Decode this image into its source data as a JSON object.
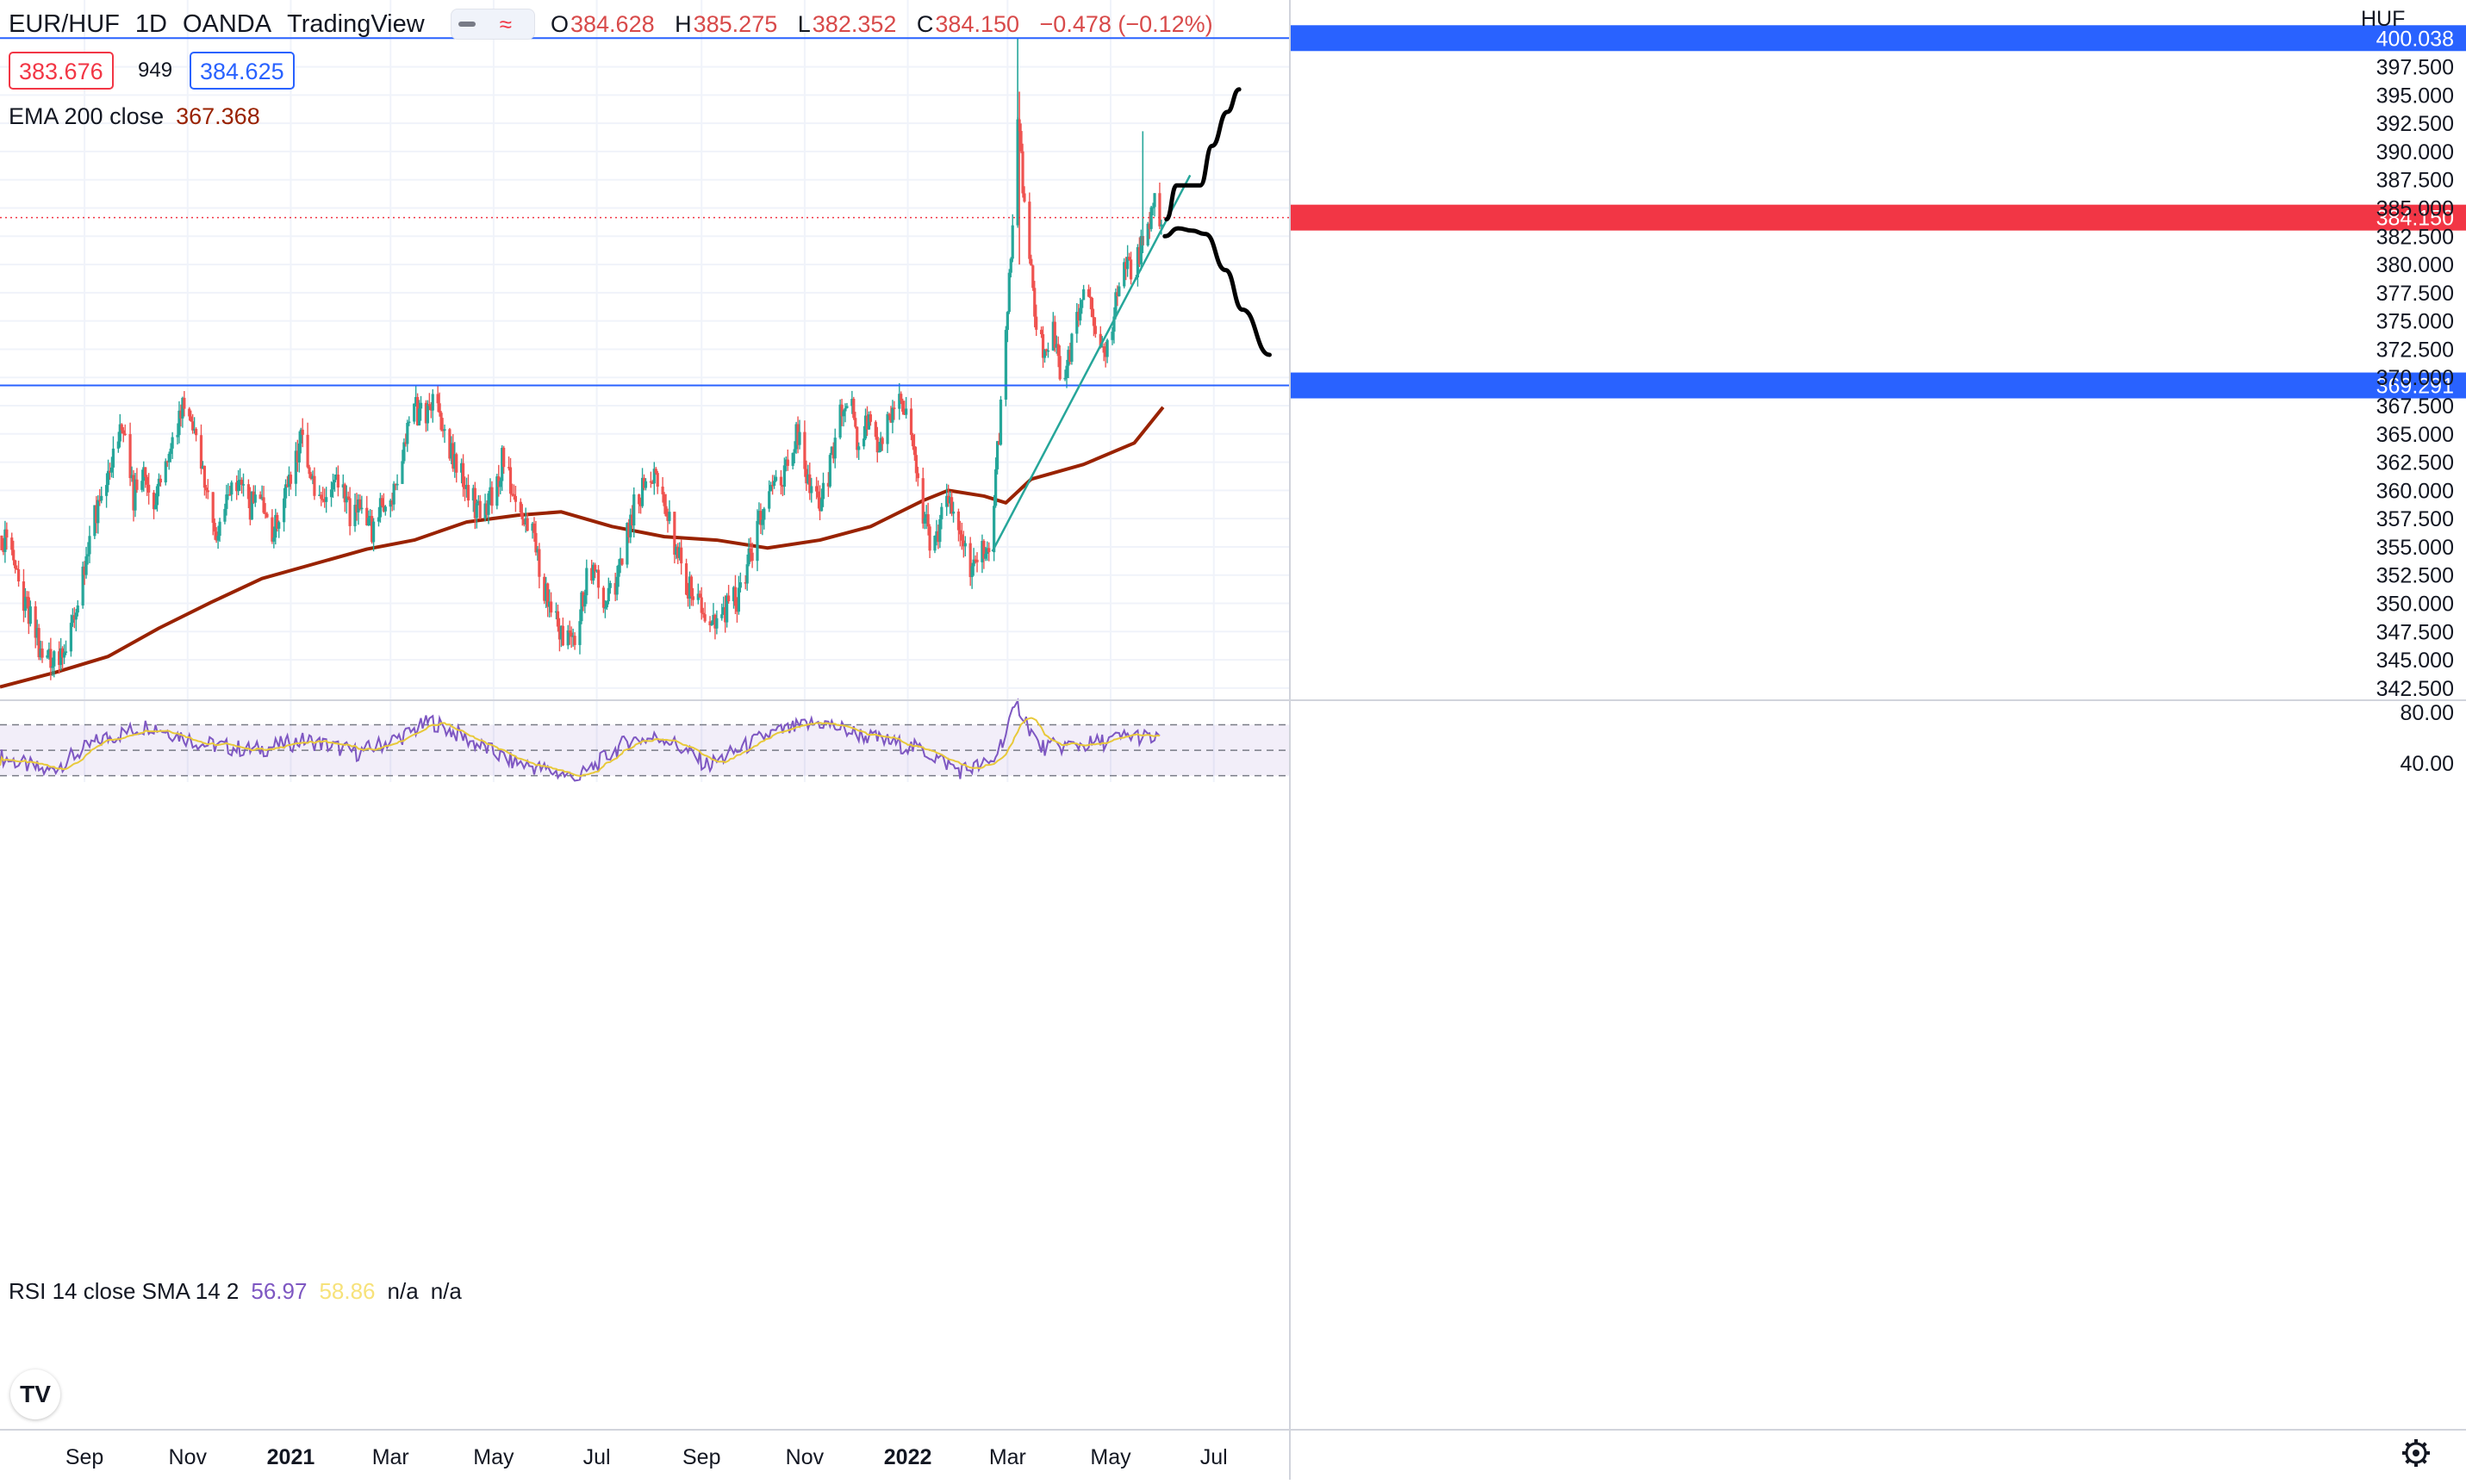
{
  "header": {
    "symbol": "EUR/HUF",
    "interval": "1D",
    "broker": "OANDA",
    "platform": "TradingView",
    "ohlc": {
      "o_label": "O",
      "o": "384.628",
      "h_label": "H",
      "h": "385.275",
      "l_label": "L",
      "l": "382.352",
      "c_label": "C",
      "c": "384.150",
      "change": "−0.478 (−0.12%)"
    },
    "bid": "383.676",
    "spread": "949",
    "ask": "384.625",
    "icons": [
      "line-style-icon",
      "wave-icon"
    ]
  },
  "ema_legend": {
    "label": "EMA 200 close",
    "value": "367.368",
    "color": "#992200"
  },
  "rsi_legend": {
    "label": "RSI 14 close SMA 14 2",
    "rsi": "56.97",
    "sma": "58.86",
    "na1": "n/a",
    "na2": "n/a",
    "rsi_color": "#7e57c2",
    "sma_color": "#f7e27a"
  },
  "price_axis": {
    "currency": "HUF",
    "ticks": [
      "397.500",
      "395.000",
      "392.500",
      "390.000",
      "387.500",
      "385.000",
      "382.500",
      "380.000",
      "377.500",
      "375.000",
      "372.500",
      "370.000",
      "367.500",
      "365.000",
      "362.500",
      "360.000",
      "357.500",
      "355.000",
      "352.500",
      "350.000",
      "347.500",
      "345.000",
      "342.500"
    ],
    "rsi_ticks": [
      "80.00",
      "40.00"
    ],
    "labels": {
      "upper_line": "400.038",
      "last_price": "384.150",
      "lower_line": "369.291"
    }
  },
  "time_axis": {
    "labels": [
      "Sep",
      "Nov",
      "2021",
      "Mar",
      "May",
      "Jul",
      "Sep",
      "Nov",
      "2022",
      "Mar",
      "May",
      "Jul"
    ],
    "bold": [
      "2021",
      "2022"
    ]
  },
  "colors": {
    "up": "#26a69a",
    "down": "#ef5350",
    "hline": "#2962ff",
    "last_price": "#f23645",
    "trendline": "#26a69a",
    "drawing": "#000000"
  },
  "settings_icon": "gear-icon",
  "logo_icon": "tradingview-logo-icon",
  "logo_text": "TV",
  "chart_data": {
    "type": "candlestick",
    "title": "",
    "y_range": [
      341.5,
      402.5
    ],
    "x_range": [
      "2020-07-13",
      "2022-08-15"
    ],
    "horizontal_lines": [
      400.038,
      369.291
    ],
    "last_price": 384.15,
    "candle_closes": [
      [
        "2020-07-14",
        356.0
      ],
      [
        "2020-07-22",
        353.0
      ],
      [
        "2020-07-30",
        349.0
      ],
      [
        "2020-08-07",
        345.5
      ],
      [
        "2020-08-15",
        344.8
      ],
      [
        "2020-08-21",
        346.0
      ],
      [
        "2020-08-27",
        349.5
      ],
      [
        "2020-09-02",
        353.5
      ],
      [
        "2020-09-07",
        358.0
      ],
      [
        "2020-09-12",
        360.0
      ],
      [
        "2020-09-18",
        363.5
      ],
      [
        "2020-09-24",
        365.5
      ],
      [
        "2020-09-30",
        359.5
      ],
      [
        "2020-10-06",
        361.0
      ],
      [
        "2020-10-12",
        359.0
      ],
      [
        "2020-10-18",
        363.0
      ],
      [
        "2020-10-24",
        364.5
      ],
      [
        "2020-10-30",
        368.5
      ],
      [
        "2020-11-03",
        366.0
      ],
      [
        "2020-11-09",
        361.5
      ],
      [
        "2020-11-14",
        358.5
      ],
      [
        "2020-11-19",
        356.0
      ],
      [
        "2020-11-25",
        360.5
      ],
      [
        "2020-12-01",
        361.0
      ],
      [
        "2020-12-07",
        358.0
      ],
      [
        "2020-12-13",
        360.5
      ],
      [
        "2020-12-19",
        355.5
      ],
      [
        "2020-12-25",
        357.5
      ],
      [
        "2021-01-01",
        361.0
      ],
      [
        "2021-01-07",
        364.5
      ],
      [
        "2021-01-13",
        360.5
      ],
      [
        "2021-01-19",
        358.0
      ],
      [
        "2021-01-25",
        360.0
      ],
      [
        "2021-01-31",
        360.5
      ],
      [
        "2021-02-06",
        357.5
      ],
      [
        "2021-02-12",
        359.5
      ],
      [
        "2021-02-18",
        356.0
      ],
      [
        "2021-02-24",
        358.5
      ],
      [
        "2021-03-02",
        360.0
      ],
      [
        "2021-03-08",
        363.0
      ],
      [
        "2021-03-14",
        367.5
      ],
      [
        "2021-03-20",
        366.5
      ],
      [
        "2021-03-26",
        368.0
      ],
      [
        "2021-04-01",
        365.0
      ],
      [
        "2021-04-07",
        362.5
      ],
      [
        "2021-04-13",
        361.0
      ],
      [
        "2021-04-19",
        359.0
      ],
      [
        "2021-04-25",
        357.5
      ],
      [
        "2021-05-01",
        360.0
      ],
      [
        "2021-05-07",
        363.0
      ],
      [
        "2021-05-13",
        359.0
      ],
      [
        "2021-05-19",
        358.0
      ],
      [
        "2021-05-25",
        356.0
      ],
      [
        "2021-05-31",
        351.0
      ],
      [
        "2021-06-06",
        348.5
      ],
      [
        "2021-06-12",
        347.0
      ],
      [
        "2021-06-18",
        346.0
      ],
      [
        "2021-06-24",
        352.0
      ],
      [
        "2021-06-30",
        353.5
      ],
      [
        "2021-07-06",
        350.0
      ],
      [
        "2021-07-12",
        351.5
      ],
      [
        "2021-07-18",
        356.0
      ],
      [
        "2021-07-24",
        359.0
      ],
      [
        "2021-07-30",
        360.5
      ],
      [
        "2021-08-05",
        361.0
      ],
      [
        "2021-08-11",
        358.0
      ],
      [
        "2021-08-17",
        354.5
      ],
      [
        "2021-08-23",
        352.0
      ],
      [
        "2021-08-29",
        350.0
      ],
      [
        "2021-09-04",
        348.5
      ],
      [
        "2021-09-10",
        348.0
      ],
      [
        "2021-09-16",
        349.5
      ],
      [
        "2021-09-22",
        350.5
      ],
      [
        "2021-09-28",
        353.0
      ],
      [
        "2021-10-04",
        356.5
      ],
      [
        "2021-10-10",
        359.0
      ],
      [
        "2021-10-16",
        360.5
      ],
      [
        "2021-10-22",
        362.5
      ],
      [
        "2021-10-28",
        365.0
      ],
      [
        "2021-11-03",
        361.0
      ],
      [
        "2021-11-09",
        359.0
      ],
      [
        "2021-11-15",
        361.5
      ],
      [
        "2021-11-21",
        366.0
      ],
      [
        "2021-11-27",
        368.5
      ],
      [
        "2021-12-03",
        364.0
      ],
      [
        "2021-12-09",
        366.5
      ],
      [
        "2021-12-15",
        364.0
      ],
      [
        "2021-12-21",
        367.0
      ],
      [
        "2021-12-27",
        368.5
      ],
      [
        "2022-01-02",
        365.5
      ],
      [
        "2022-01-08",
        360.0
      ],
      [
        "2022-01-14",
        355.0
      ],
      [
        "2022-01-20",
        357.0
      ],
      [
        "2022-01-26",
        359.5
      ],
      [
        "2022-02-01",
        356.0
      ],
      [
        "2022-02-07",
        353.5
      ],
      [
        "2022-02-13",
        354.5
      ],
      [
        "2022-02-19",
        356.0
      ],
      [
        "2022-02-24",
        365.0
      ],
      [
        "2022-03-02",
        378.0
      ],
      [
        "2022-03-07",
        393.0
      ],
      [
        "2022-03-12",
        383.0
      ],
      [
        "2022-03-17",
        376.0
      ],
      [
        "2022-03-22",
        372.5
      ],
      [
        "2022-03-28",
        374.0
      ],
      [
        "2022-04-03",
        369.0
      ],
      [
        "2022-04-09",
        373.5
      ],
      [
        "2022-04-15",
        378.0
      ],
      [
        "2022-04-21",
        375.5
      ],
      [
        "2022-04-27",
        371.0
      ],
      [
        "2022-05-03",
        376.0
      ],
      [
        "2022-05-09",
        380.5
      ],
      [
        "2022-05-15",
        379.5
      ],
      [
        "2022-05-21",
        383.0
      ],
      [
        "2022-05-27",
        385.5
      ],
      [
        "2022-05-31",
        384.15
      ]
    ],
    "ema200": [
      [
        "2020-07-13",
        342.6
      ],
      [
        "2020-08-15",
        343.9
      ],
      [
        "2020-09-15",
        345.3
      ],
      [
        "2020-10-15",
        347.8
      ],
      [
        "2020-11-15",
        350.1
      ],
      [
        "2020-12-15",
        352.2
      ],
      [
        "2021-01-15",
        353.5
      ],
      [
        "2021-02-15",
        354.8
      ],
      [
        "2021-03-15",
        355.6
      ],
      [
        "2021-04-15",
        357.2
      ],
      [
        "2021-05-15",
        357.8
      ],
      [
        "2021-06-10",
        358.1
      ],
      [
        "2021-07-10",
        356.8
      ],
      [
        "2021-08-10",
        355.9
      ],
      [
        "2021-09-10",
        355.6
      ],
      [
        "2021-10-10",
        354.9
      ],
      [
        "2021-11-10",
        355.6
      ],
      [
        "2021-12-10",
        356.8
      ],
      [
        "2022-01-10",
        359.1
      ],
      [
        "2022-01-25",
        360.0
      ],
      [
        "2022-02-15",
        359.5
      ],
      [
        "2022-02-28",
        358.9
      ],
      [
        "2022-03-15",
        361.0
      ],
      [
        "2022-04-15",
        362.3
      ],
      [
        "2022-05-15",
        364.2
      ],
      [
        "2022-06-01",
        367.37
      ]
    ],
    "trendline": [
      [
        "2022-02-20",
        354.6
      ],
      [
        "2022-06-17",
        387.9
      ]
    ],
    "projection_up": [
      [
        384.0,
        "2022-06-03"
      ],
      [
        387.0,
        "2022-06-09"
      ],
      [
        387.0,
        "2022-06-23"
      ],
      [
        390.5,
        "2022-06-30"
      ],
      [
        393.5,
        "2022-07-09"
      ],
      [
        395.5,
        "2022-07-16"
      ]
    ],
    "projection_down": [
      [
        382.5,
        "2022-06-02"
      ],
      [
        383.2,
        "2022-06-10"
      ],
      [
        383.0,
        "2022-06-18"
      ],
      [
        382.7,
        "2022-06-26"
      ],
      [
        379.5,
        "2022-07-08"
      ],
      [
        376.0,
        "2022-07-18"
      ],
      [
        372.0,
        "2022-08-03"
      ]
    ],
    "rsi": {
      "range": [
        25,
        90
      ],
      "bands": [
        70,
        50,
        30
      ],
      "values": [
        [
          "2020-07-13",
          45
        ],
        [
          "2020-08-10",
          33
        ],
        [
          "2020-09-10",
          58
        ],
        [
          "2020-10-10",
          70
        ],
        [
          "2020-11-10",
          55
        ],
        [
          "2020-12-10",
          50
        ],
        [
          "2021-01-10",
          58
        ],
        [
          "2021-02-10",
          48
        ],
        [
          "2021-03-10",
          62
        ],
        [
          "2021-03-25",
          73
        ],
        [
          "2021-05-10",
          42
        ],
        [
          "2021-06-20",
          28
        ],
        [
          "2021-07-20",
          58
        ],
        [
          "2021-08-10",
          60
        ],
        [
          "2021-09-05",
          38
        ],
        [
          "2021-10-10",
          62
        ],
        [
          "2021-11-10",
          72
        ],
        [
          "2021-12-10",
          60
        ],
        [
          "2022-01-10",
          50
        ],
        [
          "2022-02-01",
          34
        ],
        [
          "2022-02-20",
          40
        ],
        [
          "2022-03-07",
          86
        ],
        [
          "2022-03-20",
          52
        ],
        [
          "2022-04-20",
          55
        ],
        [
          "2022-05-15",
          62
        ],
        [
          "2022-05-31",
          56.97
        ]
      ]
    }
  }
}
